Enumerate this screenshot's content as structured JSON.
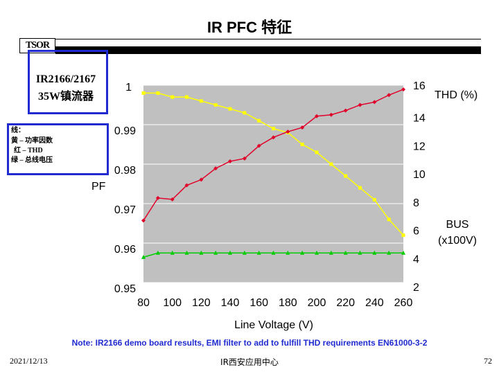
{
  "page": {
    "title": "IR PFC 特征",
    "logo_text": "TSOR",
    "info_line1": "IR2166/2167",
    "info_line2": "35W镇流器",
    "legend": {
      "heading": "线：",
      "items": [
        "黄 – 功率因数",
        "红 – THD",
        "绿 – 总线电压"
      ]
    },
    "note": "Note: IR2166 demo board results, EMI filter to add to fulfill THD requirements EN61000-3-2",
    "footer_date": "2021/12/13",
    "footer_center": "IR西安应用中心",
    "footer_page": "72"
  },
  "chart_data": {
    "type": "line",
    "xlabel": "Line Voltage (V)",
    "x": [
      80,
      90,
      100,
      110,
      120,
      130,
      140,
      150,
      160,
      170,
      180,
      190,
      200,
      210,
      220,
      230,
      240,
      250,
      260
    ],
    "xticks": [
      80,
      100,
      120,
      140,
      160,
      180,
      200,
      220,
      240,
      260
    ],
    "left_axis": {
      "label": "PF",
      "ylim": [
        0.95,
        1.0
      ],
      "ticks": [
        "1",
        "0.99",
        "0.98",
        "0.97",
        "0.96",
        "0.95"
      ]
    },
    "right_axis": {
      "labels": [
        "THD (%)",
        "BUS",
        "(x100V)"
      ],
      "ylim": [
        2,
        16
      ],
      "ticks": [
        "16",
        "14",
        "12",
        "10",
        "8",
        "6",
        "4",
        "2"
      ]
    },
    "background": "#c0c0c0",
    "series": [
      {
        "name": "PF",
        "color": "#ffff00",
        "axis": "left",
        "marker": "square",
        "values": [
          0.998,
          0.998,
          0.997,
          0.997,
          0.996,
          0.995,
          0.994,
          0.993,
          0.991,
          0.989,
          0.988,
          0.985,
          0.983,
          0.98,
          0.977,
          0.974,
          0.971,
          0.966,
          0.962
        ]
      },
      {
        "name": "THD",
        "color": "#e0002a",
        "axis": "right",
        "marker": "diamond",
        "values": [
          6.4,
          8.0,
          7.9,
          8.9,
          9.3,
          10.1,
          10.6,
          10.8,
          11.7,
          12.3,
          12.7,
          13.0,
          13.8,
          13.9,
          14.2,
          14.6,
          14.8,
          15.3,
          15.7
        ]
      },
      {
        "name": "BUS",
        "color": "#00cc00",
        "axis": "right",
        "marker": "triangle",
        "values": [
          3.8,
          4.1,
          4.1,
          4.1,
          4.1,
          4.1,
          4.1,
          4.1,
          4.1,
          4.1,
          4.1,
          4.1,
          4.1,
          4.1,
          4.1,
          4.1,
          4.1,
          4.1,
          4.1
        ]
      }
    ]
  }
}
